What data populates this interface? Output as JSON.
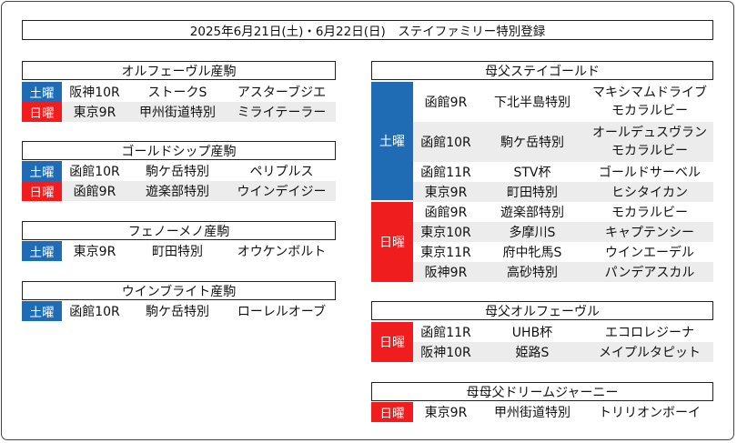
{
  "title": "2025年6月21日(土)・6月22日(日)　ステイファミリー特別登録",
  "days": {
    "sat": "土曜",
    "sun": "日曜"
  },
  "colors": {
    "saturday": "#1f6cb5",
    "sunday": "#ef1d1d",
    "row_shade": "#ececec"
  },
  "left_sections": [
    {
      "heading": "オルフェーヴル産駒",
      "rows": [
        {
          "day": "土曜",
          "race": "阪神10R",
          "event": "ストークS",
          "horse": "アスターブジエ"
        },
        {
          "day": "日曜",
          "race": "東京9R",
          "event": "甲州街道特別",
          "horse": "ミライテーラー"
        }
      ]
    },
    {
      "heading": "ゴールドシップ産駒",
      "rows": [
        {
          "day": "土曜",
          "race": "函館10R",
          "event": "駒ケ岳特別",
          "horse": "ペリプルス"
        },
        {
          "day": "日曜",
          "race": "函館9R",
          "event": "遊楽部特別",
          "horse": "ウインデイジー"
        }
      ]
    },
    {
      "heading": "フェノーメノ産駒",
      "rows": [
        {
          "day": "土曜",
          "race": "東京9R",
          "event": "町田特別",
          "horse": "オウケンボルト"
        }
      ]
    },
    {
      "heading": "ウインブライト産駒",
      "rows": [
        {
          "day": "土曜",
          "race": "函館10R",
          "event": "駒ケ岳特別",
          "horse": "ローレルオーブ"
        }
      ]
    }
  ],
  "right_sections": [
    {
      "heading": "母父ステイゴールド",
      "saturday_rows": [
        {
          "race": "函館9R",
          "event": "下北半島特別",
          "horse_lines": [
            "マキシマムドライブ",
            "モカラルビー"
          ]
        },
        {
          "race": "函館10R",
          "event": "駒ケ岳特別",
          "horse_lines": [
            "オールデュスヴラン",
            "モカラルビー"
          ]
        },
        {
          "race": "函館11R",
          "event": "STV杯",
          "horse_lines": [
            "ゴールドサーベル"
          ]
        },
        {
          "race": "東京9R",
          "event": "町田特別",
          "horse_lines": [
            "ヒシタイカン"
          ]
        }
      ],
      "sunday_rows": [
        {
          "race": "函館9R",
          "event": "遊楽部特別",
          "horse_lines": [
            "モカラルビー"
          ]
        },
        {
          "race": "東京10R",
          "event": "多摩川S",
          "horse_lines": [
            "キャプテンシー"
          ]
        },
        {
          "race": "東京11R",
          "event": "府中牝馬S",
          "horse_lines": [
            "ウインエーデル"
          ]
        },
        {
          "race": "阪神9R",
          "event": "高砂特別",
          "horse_lines": [
            "パンデアスカル"
          ]
        }
      ]
    },
    {
      "heading": "母父オルフェーヴル",
      "sunday_rows": [
        {
          "race": "函館11R",
          "event": "UHB杯",
          "horse_lines": [
            "エコロレジーナ"
          ]
        },
        {
          "race": "阪神10R",
          "event": "姫路S",
          "horse_lines": [
            "メイプルタピット"
          ]
        }
      ]
    },
    {
      "heading": "母母父ドリームジャーニー",
      "sunday_rows": [
        {
          "race": "東京9R",
          "event": "甲州街道特別",
          "horse_lines": [
            "トリリオンボーイ"
          ]
        }
      ]
    }
  ]
}
